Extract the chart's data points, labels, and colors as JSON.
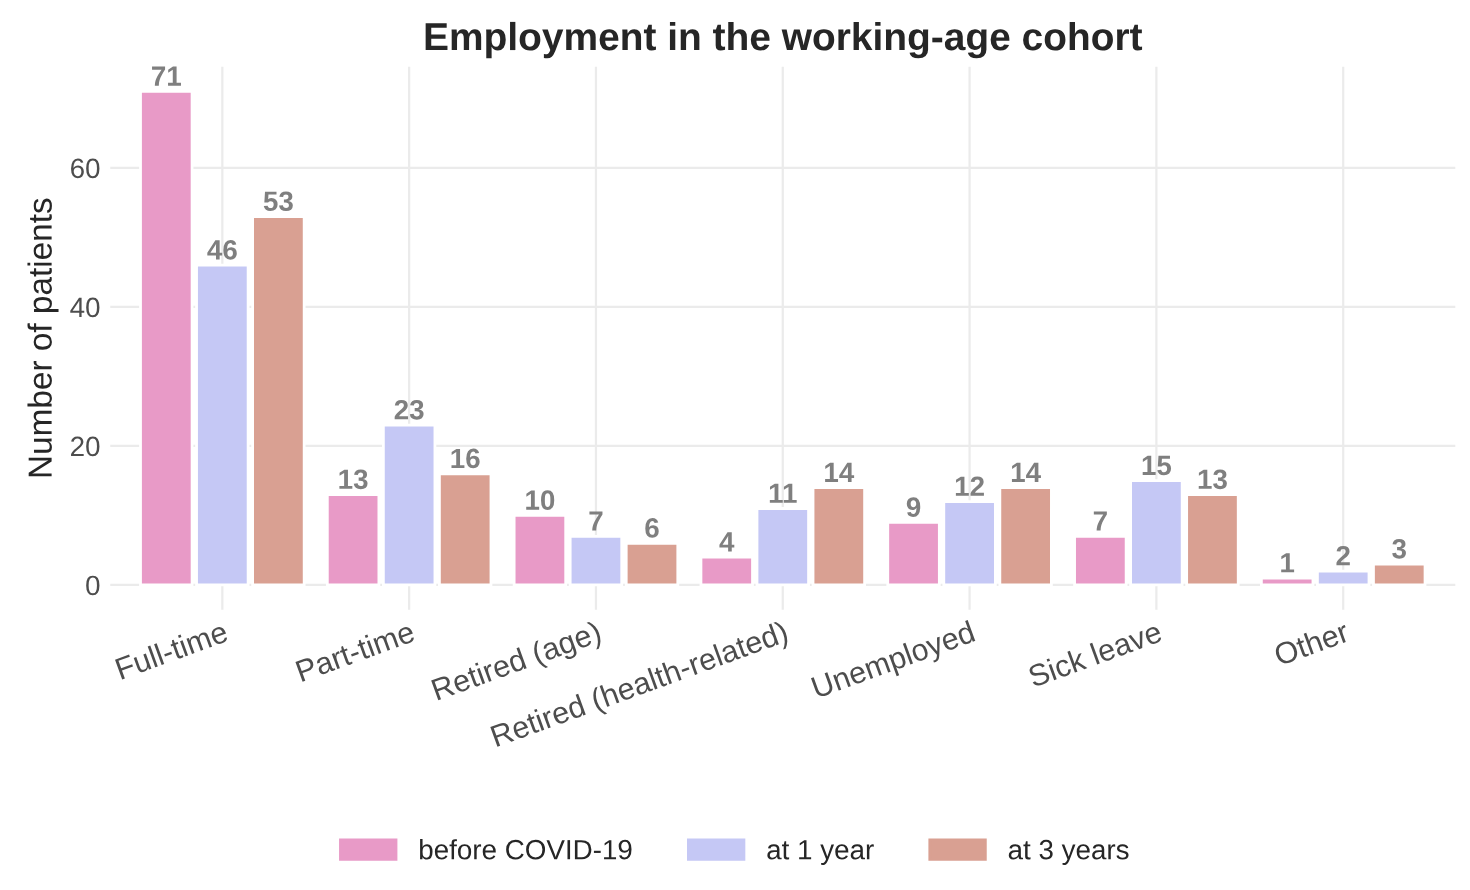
{
  "chart_data": {
    "type": "bar",
    "title": "Employment in the working-age cohort",
    "ylabel": "Number of patients",
    "categories": [
      "Full-time",
      "Part-time",
      "Retired (age)",
      "Retired (health-related)",
      "Unemployed",
      "Sick leave",
      "Other"
    ],
    "series": [
      {
        "name": "before COVID-19",
        "color": "#e89ac7",
        "values": [
          71,
          13,
          10,
          4,
          9,
          7,
          1
        ]
      },
      {
        "name": "at 1 year",
        "color": "#c5c8f5",
        "values": [
          46,
          23,
          7,
          11,
          12,
          15,
          2
        ]
      },
      {
        "name": "at 3 years",
        "color": "#d9a092",
        "values": [
          53,
          16,
          6,
          14,
          14,
          13,
          3
        ]
      }
    ],
    "ylim": [
      -3.55,
      74.55
    ],
    "yticks": [
      0,
      20,
      40,
      60
    ],
    "grid": true,
    "legend": "bottom",
    "data_labels": true
  }
}
